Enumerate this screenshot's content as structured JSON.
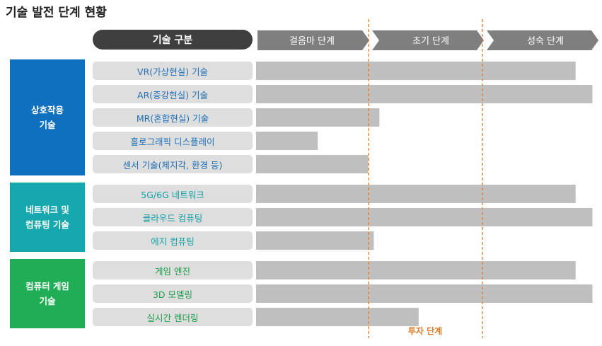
{
  "title": "기술 발전 단계 현황",
  "category_header": "기술 구분",
  "colors": {
    "header_dark": "#3f3f3f",
    "stage_arrow": "#7f7f7f",
    "bar": "#bfbfbf",
    "label_bg": "#dedede",
    "investment_line": "#e07b2a"
  },
  "chart_data": {
    "type": "bar",
    "orientation": "horizontal",
    "stages": [
      "걸음마 단계",
      "초기 단계",
      "성숙 단계"
    ],
    "investment_marker": {
      "label": "투자 단계",
      "between": [
        "걸음마 단계",
        "초기 단계",
        "성숙 단계"
      ]
    },
    "groups": [
      {
        "name": "상호작용\n기술",
        "color": "#1070c0",
        "label_color": "#1f6fb5",
        "items": [
          {
            "label": "VR(가상현실) 기술",
            "value": 2.85
          },
          {
            "label": "AR(증강현실) 기술",
            "value": 3.0
          },
          {
            "label": "MR(혼합현실) 기술",
            "value": 1.1
          },
          {
            "label": "홀로그래픽 디스플레이",
            "value": 0.55
          },
          {
            "label": "센서 기술(체지각, 환경 등)",
            "value": 1.0
          }
        ]
      },
      {
        "name": "네트워크 및\n컴퓨팅 기술",
        "color": "#17a7ae",
        "label_color": "#12a0a6",
        "items": [
          {
            "label": "5G/6G 네트워크",
            "value": 2.85
          },
          {
            "label": "클라우드 컴퓨팅",
            "value": 3.0
          },
          {
            "label": "에지 컴퓨팅",
            "value": 1.05
          }
        ]
      },
      {
        "name": "컴퓨터 게임\n기술",
        "color": "#20ad55",
        "label_color": "#1e9e4c",
        "items": [
          {
            "label": "게임 엔진",
            "value": 2.85
          },
          {
            "label": "3D 모델링",
            "value": 3.0
          },
          {
            "label": "실시간 렌더링",
            "value": 1.45
          }
        ]
      }
    ]
  }
}
